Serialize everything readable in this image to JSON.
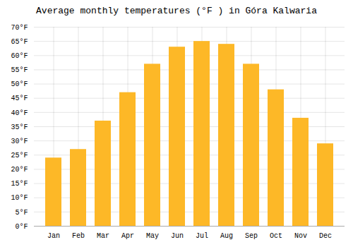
{
  "chart_data": {
    "type": "bar",
    "title": "Average monthly temperatures (°F ) in Góra Kalwaria",
    "categories": [
      "Jan",
      "Feb",
      "Mar",
      "Apr",
      "May",
      "Jun",
      "Jul",
      "Aug",
      "Sep",
      "Oct",
      "Nov",
      "Dec"
    ],
    "values": [
      24,
      27,
      37,
      47,
      57,
      63,
      65,
      64,
      57,
      48,
      38,
      29
    ],
    "color": "#FDB827",
    "ylim": [
      0,
      70
    ],
    "yticks": [
      {
        "value": 0,
        "label": "0°F"
      },
      {
        "value": 5,
        "label": "5°F"
      },
      {
        "value": 10,
        "label": "10°F"
      },
      {
        "value": 15,
        "label": "15°F"
      },
      {
        "value": 20,
        "label": "20°F"
      },
      {
        "value": 25,
        "label": "25°F"
      },
      {
        "value": 30,
        "label": "30°F"
      },
      {
        "value": 35,
        "label": "35°F"
      },
      {
        "value": 40,
        "label": "40°F"
      },
      {
        "value": 45,
        "label": "45°F"
      },
      {
        "value": 50,
        "label": "50°F"
      },
      {
        "value": 55,
        "label": "55°F"
      },
      {
        "value": 60,
        "label": "60°F"
      },
      {
        "value": 65,
        "label": "65°F"
      },
      {
        "value": 70,
        "label": "70°F"
      }
    ],
    "grid": true
  }
}
